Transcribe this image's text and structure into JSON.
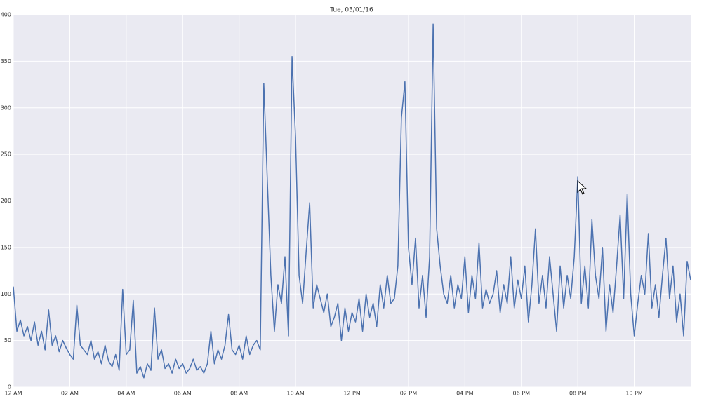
{
  "chart_data": {
    "type": "line",
    "title": "Tue, 03/01/16",
    "color": "#4c72b0",
    "grid": true,
    "x": [
      0,
      0.125,
      0.25,
      0.375,
      0.5,
      0.625,
      0.75,
      0.875,
      1,
      1.125,
      1.25,
      1.375,
      1.5,
      1.625,
      1.75,
      1.875,
      2,
      2.125,
      2.25,
      2.375,
      2.5,
      2.625,
      2.75,
      2.875,
      3,
      3.125,
      3.25,
      3.375,
      3.5,
      3.625,
      3.75,
      3.875,
      4,
      4.125,
      4.25,
      4.375,
      4.5,
      4.625,
      4.75,
      4.875,
      5,
      5.125,
      5.25,
      5.375,
      5.5,
      5.625,
      5.75,
      5.875,
      6,
      6.125,
      6.25,
      6.375,
      6.5,
      6.625,
      6.75,
      6.875,
      7,
      7.125,
      7.25,
      7.375,
      7.5,
      7.625,
      7.75,
      7.875,
      8,
      8.125,
      8.25,
      8.375,
      8.5,
      8.625,
      8.75,
      8.875,
      9,
      9.125,
      9.25,
      9.375,
      9.5,
      9.625,
      9.75,
      9.875,
      10,
      10.125,
      10.25,
      10.375,
      10.5,
      10.625,
      10.75,
      10.875,
      11,
      11.125,
      11.25,
      11.375,
      11.5,
      11.625,
      11.75,
      11.875,
      12,
      12.125,
      12.25,
      12.375,
      12.5,
      12.625,
      12.75,
      12.875,
      13,
      13.125,
      13.25,
      13.375,
      13.5,
      13.625,
      13.75,
      13.875,
      14,
      14.125,
      14.25,
      14.375,
      14.5,
      14.625,
      14.75,
      14.875,
      15,
      15.125,
      15.25,
      15.375,
      15.5,
      15.625,
      15.75,
      15.875,
      16,
      16.125,
      16.25,
      16.375,
      16.5,
      16.625,
      16.75,
      16.875,
      17,
      17.125,
      17.25,
      17.375,
      17.5,
      17.625,
      17.75,
      17.875,
      18,
      18.125,
      18.25,
      18.375,
      18.5,
      18.625,
      18.75,
      18.875,
      19,
      19.125,
      19.25,
      19.375,
      19.5,
      19.625,
      19.75,
      19.875,
      20,
      20.125,
      20.25,
      20.375,
      20.5,
      20.625,
      20.75,
      20.875,
      21,
      21.125,
      21.25,
      21.375,
      21.5,
      21.625,
      21.75,
      21.875,
      22,
      22.125,
      22.25,
      22.375,
      22.5,
      22.625,
      22.75,
      22.875,
      23,
      23.125,
      23.25,
      23.375,
      23.5,
      23.625,
      23.75,
      23.875,
      24
    ],
    "values": [
      108,
      60,
      72,
      55,
      65,
      50,
      70,
      45,
      60,
      40,
      83,
      45,
      55,
      38,
      50,
      42,
      35,
      30,
      88,
      45,
      40,
      35,
      50,
      30,
      38,
      25,
      45,
      28,
      22,
      35,
      18,
      105,
      35,
      40,
      93,
      15,
      22,
      10,
      25,
      18,
      85,
      30,
      40,
      20,
      25,
      15,
      30,
      20,
      25,
      15,
      20,
      30,
      18,
      22,
      15,
      25,
      60,
      25,
      40,
      30,
      45,
      78,
      40,
      35,
      45,
      30,
      55,
      35,
      45,
      50,
      40,
      326,
      222,
      120,
      60,
      110,
      90,
      140,
      55,
      355,
      268,
      120,
      90,
      145,
      198,
      85,
      110,
      95,
      80,
      100,
      65,
      75,
      90,
      50,
      85,
      60,
      80,
      70,
      95,
      60,
      100,
      75,
      90,
      65,
      110,
      85,
      120,
      90,
      95,
      130,
      289,
      328,
      150,
      110,
      160,
      85,
      120,
      75,
      140,
      390,
      170,
      130,
      100,
      90,
      120,
      85,
      110,
      95,
      140,
      80,
      120,
      95,
      155,
      85,
      105,
      90,
      100,
      125,
      80,
      110,
      90,
      140,
      85,
      115,
      95,
      130,
      70,
      110,
      170,
      90,
      120,
      85,
      140,
      100,
      60,
      130,
      85,
      120,
      95,
      140,
      226,
      90,
      130,
      85,
      180,
      120,
      95,
      150,
      60,
      110,
      80,
      130,
      185,
      95,
      207,
      100,
      55,
      90,
      120,
      100,
      165,
      85,
      110,
      75,
      120,
      160,
      95,
      130,
      70,
      100,
      55,
      135,
      115
    ],
    "xlim": [
      0,
      24
    ],
    "xticks": [
      {
        "value": 0,
        "label": "12 AM"
      },
      {
        "value": 2,
        "label": "02 AM"
      },
      {
        "value": 4,
        "label": "04 AM"
      },
      {
        "value": 6,
        "label": "06 AM"
      },
      {
        "value": 8,
        "label": "08 AM"
      },
      {
        "value": 10,
        "label": "10 AM"
      },
      {
        "value": 12,
        "label": "12 PM"
      },
      {
        "value": 14,
        "label": "02 PM"
      },
      {
        "value": 16,
        "label": "04 PM"
      },
      {
        "value": 18,
        "label": "06 PM"
      },
      {
        "value": 20,
        "label": "08 PM"
      },
      {
        "value": 22,
        "label": "10 PM"
      }
    ],
    "ylim": [
      0,
      400
    ],
    "yticks": [
      0,
      50,
      100,
      150,
      200,
      250,
      300,
      350,
      400
    ]
  }
}
